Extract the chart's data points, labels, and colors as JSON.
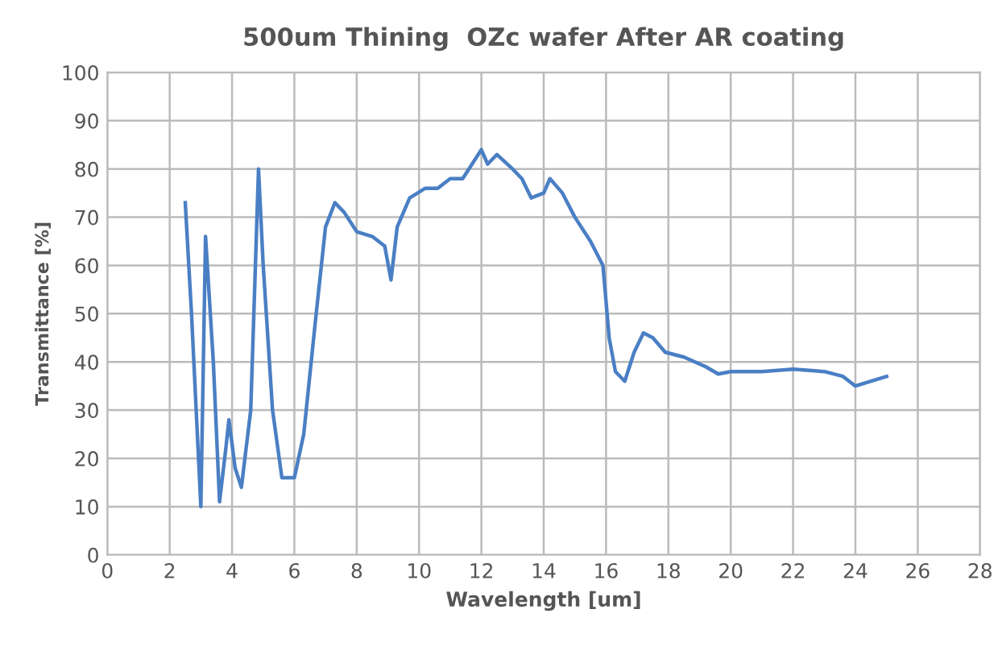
{
  "chart_data": {
    "type": "line",
    "title": "500um Thining  OZc wafer After AR coating",
    "xlabel": "Wavelength [um]",
    "ylabel": "Transmittance [%]",
    "xlim": [
      0,
      28
    ],
    "xticks": [
      0,
      2,
      4,
      6,
      8,
      10,
      12,
      14,
      16,
      18,
      20,
      22,
      24,
      26,
      28
    ],
    "ylim": [
      0,
      100
    ],
    "yticks": [
      0,
      10,
      20,
      30,
      40,
      50,
      60,
      70,
      80,
      90,
      100
    ],
    "grid": true,
    "legend": false,
    "marker": "none",
    "line_style": "solid",
    "series": [
      {
        "color": "#4a7fc4",
        "x": [
          2.5,
          2.7,
          3.0,
          3.15,
          3.4,
          3.6,
          3.8,
          3.9,
          4.1,
          4.3,
          4.6,
          4.85,
          5.0,
          5.3,
          5.6,
          6.0,
          6.3,
          6.7,
          7.0,
          7.3,
          7.6,
          8.0,
          8.5,
          8.9,
          9.1,
          9.3,
          9.7,
          10.2,
          10.6,
          11.0,
          11.4,
          11.8,
          12.0,
          12.2,
          12.5,
          13.0,
          13.3,
          13.6,
          14.0,
          14.2,
          14.6,
          15.0,
          15.5,
          15.9,
          16.1,
          16.3,
          16.6,
          16.9,
          17.2,
          17.5,
          17.9,
          18.5,
          19.2,
          19.6,
          20.0,
          21.0,
          22.0,
          23.0,
          23.6,
          24.0,
          24.5,
          25.0
        ],
        "values": [
          73,
          50,
          10,
          66,
          40,
          11,
          22,
          28,
          18,
          14,
          30,
          80,
          60,
          30,
          16,
          16,
          25,
          50,
          68,
          73,
          71,
          67,
          66,
          64,
          57,
          68,
          74,
          76,
          76,
          78,
          78,
          82,
          84,
          81,
          83,
          80,
          78,
          74,
          75,
          78,
          75,
          70,
          65,
          60,
          45,
          38,
          36,
          42,
          46,
          45,
          42,
          41,
          39,
          37.5,
          38,
          38,
          38.5,
          38,
          37,
          35,
          36,
          37
        ]
      }
    ]
  }
}
